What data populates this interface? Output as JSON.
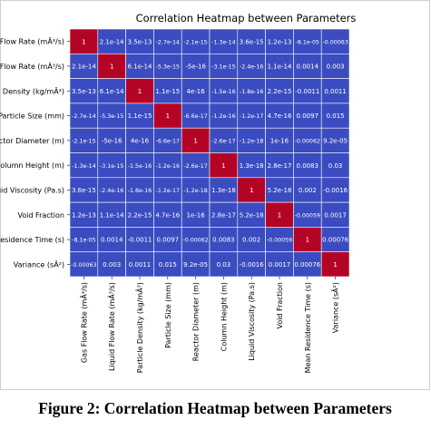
{
  "figure_caption": "Figure 2: Correlation Heatmap between Parameters",
  "chart_data": {
    "type": "heatmap",
    "title": "Correlation Heatmap between Parameters",
    "row_labels": [
      "Gas Flow Rate (mÂ³/s)",
      "Liquid Flow Rate (mÂ³/s)",
      "Particle Density (kg/mÂ³)",
      "Particle Size (mm)",
      "Reactor Diameter (m)",
      "Column Height (m)",
      "Liquid Viscosity (Pa.s)",
      "Void Fraction",
      "Mean Residence Time (s)",
      "Variance (sÂ²)"
    ],
    "col_labels": [
      "Gas Flow Rate (mÂ³/s)",
      "Liquid Flow Rate (mÂ³/s)",
      "Particle Density (kg/mÂ³)",
      "Particle Size (mm)",
      "Reactor Diameter (m)",
      "Column Height (m)",
      "Liquid Viscosity (Pa.s)",
      "Void Fraction",
      "Mean Residence Time (s)",
      "Variance (sÂ²)"
    ],
    "values": [
      [
        "1",
        "2.1e-14",
        "3.5e-13",
        "-2.7e-14",
        "-2.1e-15",
        "-1.3e-14",
        "3.6e-15",
        "1.2e-13",
        "-8.1e-05",
        "-0.00063"
      ],
      [
        "2.1e-14",
        "1",
        "6.1e-14",
        "-5.3e-15",
        "-5e-16",
        "-3.1e-15",
        "-2.4e-16",
        "1.1e-14",
        "0.0014",
        "0.003"
      ],
      [
        "3.5e-13",
        "6.1e-14",
        "1",
        "1.1e-15",
        "4e-16",
        "-1.5e-16",
        "-1.8e-16",
        "2.2e-15",
        "-0.0011",
        "0.0011"
      ],
      [
        "-2.7e-14",
        "-5.3e-15",
        "1.1e-15",
        "1",
        "-6.6e-17",
        "-1.2e-16",
        "-1.2e-17",
        "4.7e-16",
        "0.0097",
        "0.015"
      ],
      [
        "-2.1e-15",
        "-5e-16",
        "4e-16",
        "-6.6e-17",
        "1",
        "-2.6e-17",
        "-1.2e-18",
        "1e-16",
        "-0.00062",
        "9.2e-05"
      ],
      [
        "-1.3e-14",
        "-3.1e-15",
        "-1.5e-16",
        "-1.2e-16",
        "-2.6e-17",
        "1",
        "1.3e-18",
        "2.8e-17",
        "0.0083",
        "0.03"
      ],
      [
        "3.6e-15",
        "-2.4e-16",
        "-1.8e-16",
        "-1.2e-17",
        "-1.2e-18",
        "1.3e-18",
        "1",
        "5.2e-18",
        "0.002",
        "-0.0016"
      ],
      [
        "1.2e-13",
        "1.1e-14",
        "2.2e-15",
        "4.7e-16",
        "1e-16",
        "2.8e-17",
        "5.2e-18",
        "1",
        "-0.00059",
        "0.0017"
      ],
      [
        "-8.1e-05",
        "0.0014",
        "-0.0011",
        "0.0097",
        "-0.00062",
        "0.0083",
        "0.002",
        "-0.00059",
        "1",
        "0.00076"
      ],
      [
        "-0.00063",
        "0.003",
        "0.0011",
        "0.015",
        "9.2e-05",
        "0.03",
        "-0.0016",
        "0.0017",
        "0.00076",
        "1"
      ]
    ],
    "colors": {
      "low": "#3b4cc0",
      "high": "#b40426",
      "grid_line": "#ffffff",
      "text": "#ffffff"
    }
  }
}
